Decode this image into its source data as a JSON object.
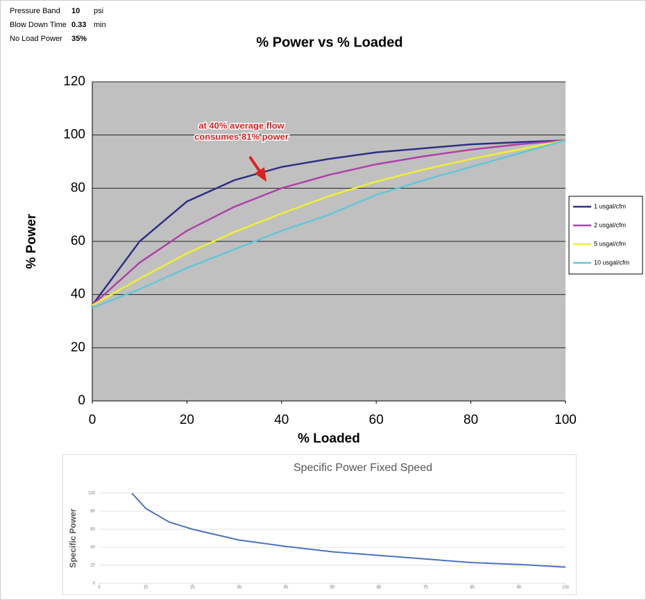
{
  "parameters": [
    {
      "label": "Pressure Band",
      "value": "10",
      "unit": "psi"
    },
    {
      "label": "Blow Down Time",
      "value": "0.33",
      "unit": "min"
    },
    {
      "label": "No Load Power",
      "value": "35%"
    }
  ],
  "chart_data": [
    {
      "type": "line",
      "title": "% Power vs % Loaded",
      "x_label": "% Loaded",
      "y_label": "% Power",
      "x": [
        0,
        10,
        20,
        30,
        40,
        50,
        60,
        70,
        80,
        90,
        100
      ],
      "series": [
        {
          "name": "1 usgal/cfm",
          "color": "#2e2e86",
          "values": [
            36,
            60,
            75,
            83,
            88,
            91,
            93.5,
            95,
            96.5,
            97.3,
            98
          ]
        },
        {
          "name": "2 usgal/cfm",
          "color": "#b040a8",
          "values": [
            36,
            52,
            64,
            73,
            80,
            85,
            89,
            92,
            94.5,
            96.5,
            98
          ]
        },
        {
          "name": "5 usgal/cfm",
          "color": "#f0f030",
          "values": [
            36,
            46,
            55.5,
            63.5,
            70.5,
            77,
            82.5,
            87,
            91,
            94.5,
            98
          ]
        },
        {
          "name": "10 usgal/cfm",
          "color": "#60c8d8",
          "values": [
            35,
            42,
            50,
            57,
            64,
            70,
            77.5,
            83,
            88,
            93,
            98
          ]
        }
      ],
      "xlim": [
        0,
        100
      ],
      "xticks": [
        0,
        20,
        40,
        60,
        80,
        100
      ],
      "ylim": [
        0,
        120
      ],
      "yticks": [
        0,
        20,
        40,
        60,
        80,
        100,
        120
      ],
      "grid": true,
      "legend": "right",
      "annotation": [
        "at 40% average flow",
        "consumes 81% power"
      ]
    },
    {
      "type": "line",
      "title": "Specific Power Fixed Speed",
      "y_label": "Specific Power",
      "x": [
        7,
        10,
        15,
        20,
        30,
        40,
        50,
        60,
        70,
        80,
        90,
        100
      ],
      "series": [
        {
          "color": "#4a72c0",
          "values": [
            100,
            83,
            68,
            60,
            48,
            41,
            35,
            31,
            27,
            23,
            21,
            18
          ]
        }
      ],
      "xlim": [
        0,
        100
      ],
      "xticks": [
        0,
        10,
        20,
        30,
        40,
        50,
        60,
        70,
        80,
        90,
        100
      ],
      "ylim": [
        0,
        100
      ],
      "yticks": [
        0,
        20,
        40,
        60,
        80,
        100
      ],
      "grid": true
    }
  ]
}
